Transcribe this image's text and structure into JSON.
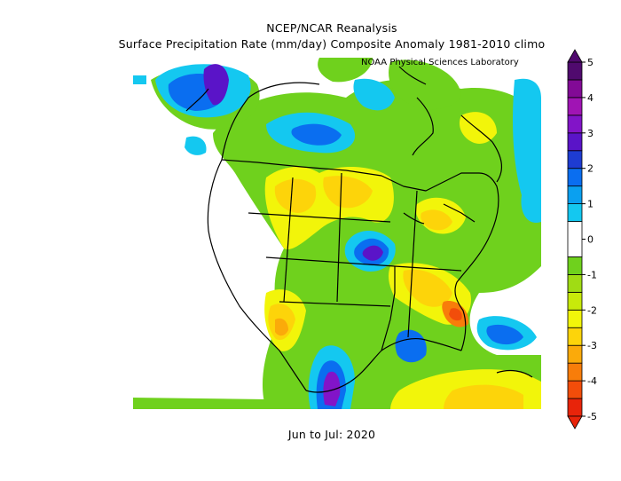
{
  "header": {
    "title": "NCEP/NCAR Reanalysis",
    "subtitle": "Surface Precipitation Rate (mm/day) Composite Anomaly 1981-2010 climo",
    "credit": "NOAA Physical Sciences Laboratory"
  },
  "footer": {
    "period": "Jun to Jul: 2020"
  },
  "colorbar": {
    "tick_labels": [
      "5",
      "4",
      "3",
      "2",
      "1",
      "0",
      "-1",
      "-2",
      "-3",
      "-4",
      "-5"
    ],
    "tick_values": [
      5,
      4,
      3,
      2,
      1,
      0,
      -1,
      -2,
      -3,
      -4,
      -5
    ],
    "min": -5,
    "max": 5,
    "bins": [
      {
        "from": -5.0,
        "to": -4.5,
        "color": "#e8240a"
      },
      {
        "from": -4.5,
        "to": -4.0,
        "color": "#f24d0a"
      },
      {
        "from": -4.0,
        "to": -3.5,
        "color": "#f87d0a"
      },
      {
        "from": -3.5,
        "to": -3.0,
        "color": "#fbaa0a"
      },
      {
        "from": -3.0,
        "to": -2.5,
        "color": "#fdd40a"
      },
      {
        "from": -2.5,
        "to": -2.0,
        "color": "#f2f50a"
      },
      {
        "from": -2.0,
        "to": -1.5,
        "color": "#c8ea0a"
      },
      {
        "from": -1.5,
        "to": -1.0,
        "color": "#a0dc14"
      },
      {
        "from": -1.0,
        "to": -0.5,
        "color": "#6fd11d"
      },
      {
        "from": -0.5,
        "to": 0.5,
        "color": "#ffffff"
      },
      {
        "from": 0.5,
        "to": 1.0,
        "color": "#14c8f0"
      },
      {
        "from": 1.0,
        "to": 1.5,
        "color": "#0aa0f0"
      },
      {
        "from": 1.5,
        "to": 2.0,
        "color": "#0a6ef0"
      },
      {
        "from": 2.0,
        "to": 2.5,
        "color": "#1e3cd2"
      },
      {
        "from": 2.5,
        "to": 3.0,
        "color": "#5a14c8"
      },
      {
        "from": 3.0,
        "to": 3.5,
        "color": "#8214c8"
      },
      {
        "from": 3.5,
        "to": 4.0,
        "color": "#a014b4"
      },
      {
        "from": 4.0,
        "to": 4.5,
        "color": "#820a96"
      },
      {
        "from": 4.5,
        "to": 5.0,
        "color": "#500a6e"
      }
    ]
  },
  "map": {
    "region": "North America",
    "colors": {
      "white": "#ffffff",
      "green_light": "#6fd11d",
      "green_yellow": "#a0dc14",
      "lime": "#c8ea0a",
      "yellow": "#f2f50a",
      "gold": "#fdd40a",
      "orange_light": "#fbaa0a",
      "orange": "#f87d0a",
      "red_orange": "#f24d0a",
      "cyan": "#14c8f0",
      "blue_light": "#0aa0f0",
      "blue": "#0a6ef0",
      "blue_dark": "#1e3cd2",
      "violet": "#5a14c8",
      "purple": "#8214c8",
      "border": "#000000"
    }
  }
}
